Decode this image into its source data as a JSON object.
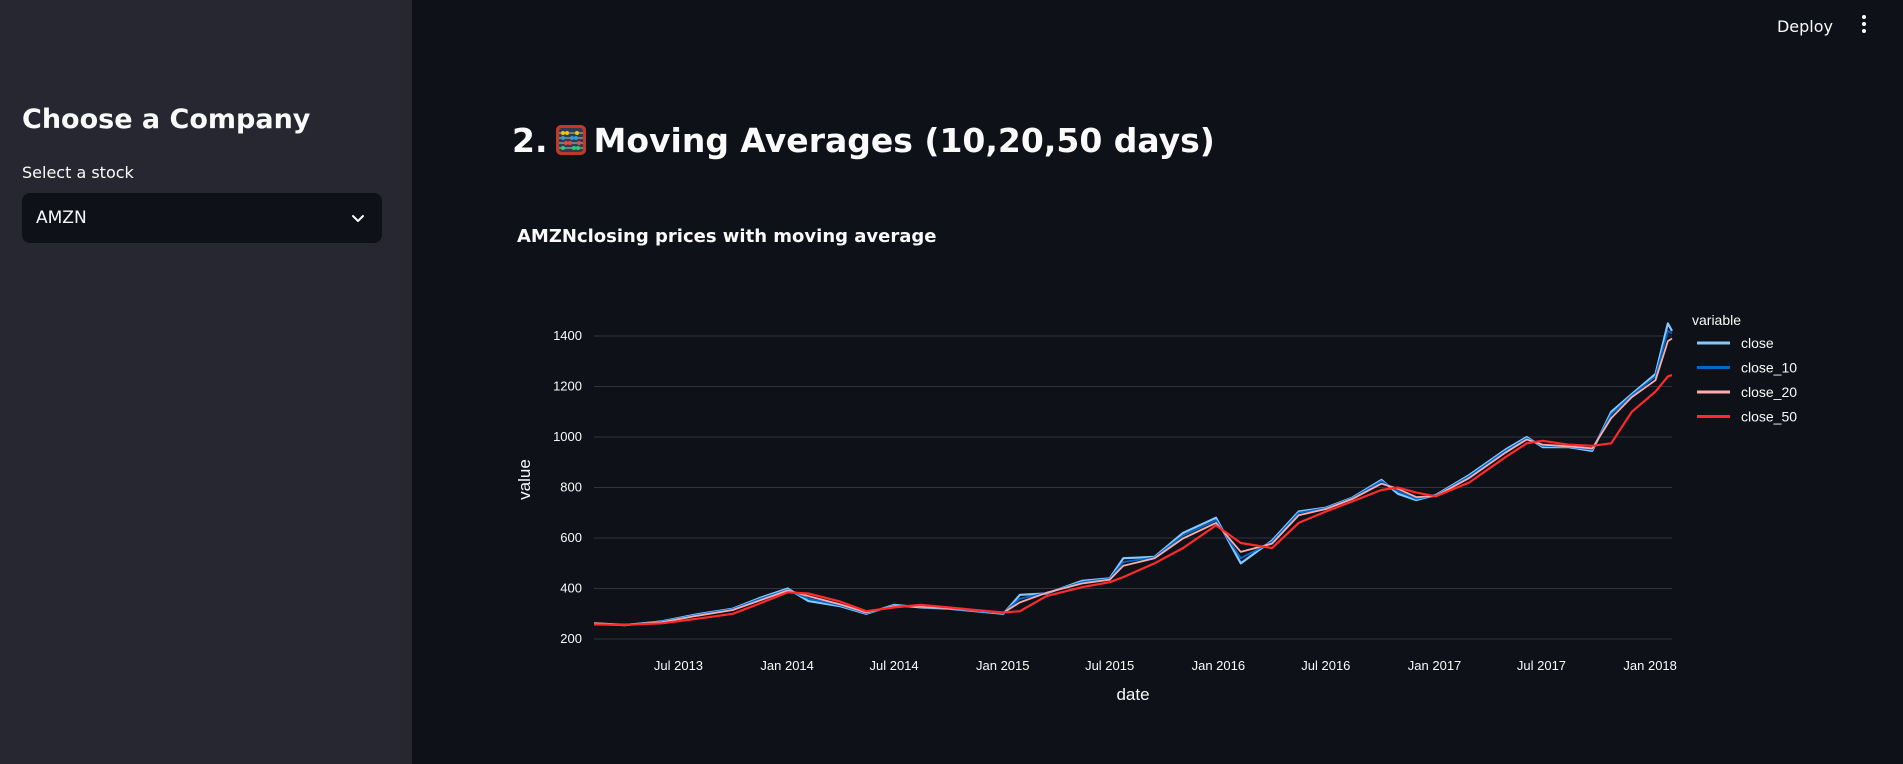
{
  "sidebar": {
    "title": "Choose a Company",
    "select_label": "Select a stock",
    "select_value": "AMZN"
  },
  "header": {
    "deploy_label": "Deploy",
    "menu_icon": "kebab-menu-icon"
  },
  "main": {
    "heading_prefix": "2.",
    "heading_icon": "abacus-icon",
    "heading_text": "Moving Averages (10,20,50 days)",
    "chart_title": "AMZNclosing prices with moving average"
  },
  "colors": {
    "background": "#0e1117",
    "sidebar": "#262730",
    "close": "#83c9ff",
    "close_10": "#0068c9",
    "close_20": "#ffabab",
    "close_50": "#ff2b2b"
  },
  "chart_data": {
    "type": "line",
    "xlabel": "date",
    "ylabel": "value",
    "legend_title": "variable",
    "legend_position": "right",
    "grid": true,
    "ylim": [
      200,
      1450
    ],
    "xlim": [
      "2013-02-08",
      "2018-02-07"
    ],
    "y_ticks": [
      200,
      400,
      600,
      800,
      1000,
      1200,
      1400
    ],
    "x_ticks": [
      "Jul 2013",
      "Jan 2014",
      "Jul 2014",
      "Jan 2015",
      "Jul 2015",
      "Jan 2016",
      "Jul 2016",
      "Jan 2017",
      "Jul 2017",
      "Jan 2018"
    ],
    "x": [
      "2013-02-08",
      "2013-04-01",
      "2013-06-03",
      "2013-08-01",
      "2013-10-01",
      "2013-11-15",
      "2014-01-02",
      "2014-02-06",
      "2014-04-01",
      "2014-05-15",
      "2014-07-01",
      "2014-08-15",
      "2014-10-01",
      "2014-11-15",
      "2015-01-02",
      "2015-01-30",
      "2015-03-16",
      "2015-05-15",
      "2015-07-01",
      "2015-07-24",
      "2015-09-15",
      "2015-11-02",
      "2015-12-28",
      "2016-02-08",
      "2016-04-01",
      "2016-05-16",
      "2016-07-01",
      "2016-08-15",
      "2016-10-03",
      "2016-10-31",
      "2016-12-01",
      "2017-01-03",
      "2017-03-01",
      "2017-05-01",
      "2017-06-06",
      "2017-07-03",
      "2017-08-15",
      "2017-09-25",
      "2017-10-27",
      "2017-12-01",
      "2018-01-10",
      "2018-01-31",
      "2018-02-07"
    ],
    "series": [
      {
        "name": "close",
        "values": [
          261,
          255,
          270,
          298,
          320,
          362,
          400,
          350,
          330,
          300,
          335,
          325,
          320,
          310,
          300,
          375,
          380,
          430,
          440,
          520,
          525,
          620,
          680,
          500,
          590,
          705,
          720,
          760,
          830,
          775,
          750,
          770,
          850,
          950,
          1000,
          960,
          960,
          945,
          1100,
          1170,
          1250,
          1450,
          1420
        ]
      },
      {
        "name": "close_10",
        "values": [
          262,
          256,
          268,
          295,
          318,
          358,
          395,
          360,
          333,
          302,
          332,
          327,
          321,
          312,
          302,
          360,
          382,
          425,
          438,
          505,
          523,
          610,
          670,
          520,
          585,
          700,
          718,
          758,
          825,
          785,
          755,
          768,
          845,
          945,
          995,
          965,
          962,
          950,
          1090,
          1165,
          1240,
          1420,
          1410
        ]
      },
      {
        "name": "close_20",
        "values": [
          263,
          257,
          266,
          292,
          315,
          352,
          392,
          370,
          337,
          305,
          330,
          328,
          322,
          314,
          304,
          345,
          383,
          420,
          435,
          490,
          520,
          598,
          660,
          545,
          578,
          690,
          715,
          755,
          815,
          795,
          762,
          766,
          838,
          938,
          990,
          970,
          963,
          955,
          1075,
          1158,
          1225,
          1380,
          1390
        ]
      },
      {
        "name": "close_50",
        "values": [
          258,
          256,
          262,
          280,
          300,
          340,
          385,
          380,
          348,
          310,
          325,
          335,
          325,
          315,
          305,
          310,
          370,
          405,
          425,
          445,
          500,
          560,
          650,
          580,
          560,
          660,
          705,
          745,
          790,
          800,
          780,
          765,
          820,
          920,
          975,
          985,
          970,
          965,
          975,
          1100,
          1180,
          1240,
          1245
        ]
      }
    ]
  }
}
